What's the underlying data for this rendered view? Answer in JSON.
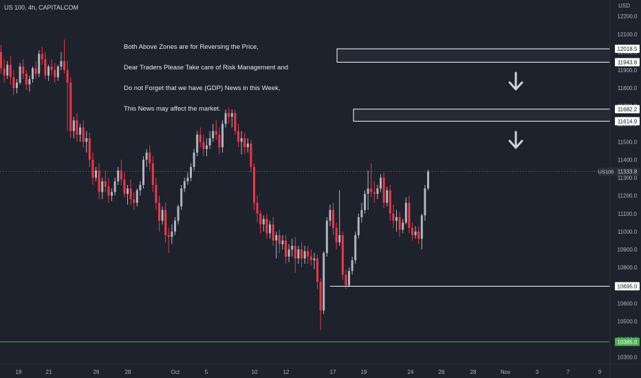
{
  "header": {
    "symbol_title": "US 100, 4h, CAPITALCOM",
    "currency": "USD"
  },
  "annotation": {
    "lines": [
      "Both Above Zones are for Reversing the Price,",
      "Dear Traders Please Take care of Risk Management and",
      "Do not Forget that we have (GDP) News in this Week,",
      "This News may affect the market."
    ]
  },
  "colors": {
    "background": "#1e222d",
    "up_candle": "#b2b5be",
    "down_candle": "#f23645",
    "green_line": "#4caf50",
    "zone_line": "#ffffff",
    "arrow": "#d1d4dc"
  },
  "chart_data": {
    "type": "candlestick",
    "timeframe": "4h",
    "y_axis": {
      "min": 10260,
      "max": 12260,
      "ticks": [
        12200,
        12100,
        12000,
        11900,
        11800,
        11700,
        11600,
        11500,
        11400,
        11300,
        11200,
        11100,
        11000,
        10900,
        10800,
        10700,
        10600,
        10500,
        10400,
        10300
      ],
      "tick_labels": [
        "12200.0",
        "12100.0",
        "12000.0",
        "11900.0",
        "11800.0",
        "11700.0",
        "11600.0",
        "11500.0",
        "11400.0",
        "11300.0",
        "11200.0",
        "11100.0",
        "11000.0",
        "10900.0",
        "10800.0",
        "10700.0",
        "10600.0",
        "10500.0",
        "10400.0",
        "10300.0"
      ]
    },
    "x_axis": {
      "tick_labels": [
        "19",
        "21",
        "26",
        "28",
        "Oct",
        "5",
        "10",
        "12",
        "17",
        "19",
        "24",
        "26",
        "28",
        "Nov",
        "3",
        "7",
        "9"
      ]
    },
    "zones": [
      {
        "top": 12018.5,
        "bottom": 11943.8,
        "top_label": "12018.5",
        "bottom_label": "11943.8"
      },
      {
        "top": 11682.2,
        "bottom": 11614.9,
        "top_label": "11682.2",
        "bottom_label": "11614.9"
      }
    ],
    "support_line": {
      "value": 10695.0,
      "label": "10695.0"
    },
    "green_line": {
      "value": 10385.0,
      "label": "10385.0"
    },
    "current_price": {
      "value": 11333.8,
      "label": "11333.8",
      "symbol": "US100"
    },
    "candles": [
      {
        "o": 12000,
        "h": 12040,
        "c": 11910,
        "l": 11880
      },
      {
        "o": 11910,
        "h": 11960,
        "c": 11870,
        "l": 11830
      },
      {
        "o": 11870,
        "h": 11950,
        "c": 11930,
        "l": 11850
      },
      {
        "o": 11930,
        "h": 11980,
        "c": 11860,
        "l": 11820
      },
      {
        "o": 11860,
        "h": 11900,
        "c": 11800,
        "l": 11760
      },
      {
        "o": 11800,
        "h": 11850,
        "c": 11830,
        "l": 11770
      },
      {
        "o": 11830,
        "h": 11940,
        "c": 11920,
        "l": 11820
      },
      {
        "o": 11920,
        "h": 11960,
        "c": 11880,
        "l": 11850
      },
      {
        "o": 11880,
        "h": 11900,
        "c": 11820,
        "l": 11790
      },
      {
        "o": 11820,
        "h": 11870,
        "c": 11850,
        "l": 11780
      },
      {
        "o": 11850,
        "h": 11920,
        "c": 11910,
        "l": 11830
      },
      {
        "o": 11910,
        "h": 11950,
        "c": 11880,
        "l": 11850
      },
      {
        "o": 11880,
        "h": 12010,
        "c": 11990,
        "l": 11860
      },
      {
        "o": 11990,
        "h": 12030,
        "c": 11960,
        "l": 11930
      },
      {
        "o": 11960,
        "h": 12000,
        "c": 11870,
        "l": 11850
      },
      {
        "o": 11870,
        "h": 11930,
        "c": 11920,
        "l": 11840
      },
      {
        "o": 11920,
        "h": 11960,
        "c": 11900,
        "l": 11870
      },
      {
        "o": 11900,
        "h": 11940,
        "c": 11860,
        "l": 11830
      },
      {
        "o": 11860,
        "h": 11930,
        "c": 11920,
        "l": 11840
      },
      {
        "o": 11920,
        "h": 12000,
        "c": 11950,
        "l": 11900
      },
      {
        "o": 11950,
        "h": 12070,
        "c": 11900,
        "l": 11880
      },
      {
        "o": 11900,
        "h": 11950,
        "c": 11830,
        "l": 11560
      },
      {
        "o": 11830,
        "h": 11860,
        "c": 11560,
        "l": 11520
      },
      {
        "o": 11560,
        "h": 11640,
        "c": 11620,
        "l": 11520
      },
      {
        "o": 11620,
        "h": 11660,
        "c": 11540,
        "l": 11500
      },
      {
        "o": 11540,
        "h": 11600,
        "c": 11580,
        "l": 11500
      },
      {
        "o": 11580,
        "h": 11620,
        "c": 11500,
        "l": 11470
      },
      {
        "o": 11500,
        "h": 11560,
        "c": 11520,
        "l": 11440
      },
      {
        "o": 11520,
        "h": 11550,
        "c": 11400,
        "l": 11360
      },
      {
        "o": 11400,
        "h": 11440,
        "c": 11300,
        "l": 11260
      },
      {
        "o": 11300,
        "h": 11360,
        "c": 11340,
        "l": 11280
      },
      {
        "o": 11340,
        "h": 11380,
        "c": 11220,
        "l": 11180
      },
      {
        "o": 11220,
        "h": 11300,
        "c": 11280,
        "l": 11180
      },
      {
        "o": 11280,
        "h": 11340,
        "c": 11250,
        "l": 11220
      },
      {
        "o": 11250,
        "h": 11300,
        "c": 11200,
        "l": 11160
      },
      {
        "o": 11200,
        "h": 11240,
        "c": 11220,
        "l": 11170
      },
      {
        "o": 11220,
        "h": 11300,
        "c": 11280,
        "l": 11200
      },
      {
        "o": 11280,
        "h": 11360,
        "c": 11340,
        "l": 11260
      },
      {
        "o": 11340,
        "h": 11400,
        "c": 11290,
        "l": 11260
      },
      {
        "o": 11290,
        "h": 11330,
        "c": 11210,
        "l": 11190
      },
      {
        "o": 11210,
        "h": 11260,
        "c": 11240,
        "l": 11150
      },
      {
        "o": 11240,
        "h": 11290,
        "c": 11180,
        "l": 11150
      },
      {
        "o": 11180,
        "h": 11220,
        "c": 11160,
        "l": 11120
      },
      {
        "o": 11160,
        "h": 11240,
        "c": 11230,
        "l": 11140
      },
      {
        "o": 11230,
        "h": 11280,
        "c": 11260,
        "l": 11200
      },
      {
        "o": 11260,
        "h": 11420,
        "c": 11400,
        "l": 11240
      },
      {
        "o": 11400,
        "h": 11460,
        "c": 11440,
        "l": 11360
      },
      {
        "o": 11440,
        "h": 11480,
        "c": 11380,
        "l": 11340
      },
      {
        "o": 11380,
        "h": 11420,
        "c": 11260,
        "l": 11220
      },
      {
        "o": 11260,
        "h": 11300,
        "c": 11160,
        "l": 11120
      },
      {
        "o": 11160,
        "h": 11200,
        "c": 11060,
        "l": 11000
      },
      {
        "o": 11060,
        "h": 11140,
        "c": 11120,
        "l": 11040
      },
      {
        "o": 11120,
        "h": 11160,
        "c": 10980,
        "l": 10940
      },
      {
        "o": 10980,
        "h": 11020,
        "c": 10970,
        "l": 10880
      },
      {
        "o": 10970,
        "h": 11040,
        "c": 11000,
        "l": 10930
      },
      {
        "o": 11000,
        "h": 11080,
        "c": 11060,
        "l": 10980
      },
      {
        "o": 11060,
        "h": 11150,
        "c": 11140,
        "l": 11040
      },
      {
        "o": 11140,
        "h": 11260,
        "c": 11240,
        "l": 11120
      },
      {
        "o": 11240,
        "h": 11300,
        "c": 11280,
        "l": 11220
      },
      {
        "o": 11280,
        "h": 11330,
        "c": 11300,
        "l": 11260
      },
      {
        "o": 11300,
        "h": 11380,
        "c": 11360,
        "l": 11280
      },
      {
        "o": 11360,
        "h": 11460,
        "c": 11440,
        "l": 11340
      },
      {
        "o": 11440,
        "h": 11560,
        "c": 11540,
        "l": 11420
      },
      {
        "o": 11540,
        "h": 11580,
        "c": 11500,
        "l": 11470
      },
      {
        "o": 11500,
        "h": 11540,
        "c": 11460,
        "l": 11420
      },
      {
        "o": 11460,
        "h": 11520,
        "c": 11480,
        "l": 11420
      },
      {
        "o": 11480,
        "h": 11560,
        "c": 11520,
        "l": 11460
      },
      {
        "o": 11520,
        "h": 11600,
        "c": 11560,
        "l": 11500
      },
      {
        "o": 11560,
        "h": 11620,
        "c": 11540,
        "l": 11510
      },
      {
        "o": 11540,
        "h": 11580,
        "c": 11470,
        "l": 11430
      },
      {
        "o": 11470,
        "h": 11620,
        "c": 11600,
        "l": 11440
      },
      {
        "o": 11600,
        "h": 11680,
        "c": 11660,
        "l": 11580
      },
      {
        "o": 11660,
        "h": 11690,
        "c": 11640,
        "l": 11600
      },
      {
        "o": 11640,
        "h": 11680,
        "c": 11660,
        "l": 11580
      },
      {
        "o": 11660,
        "h": 11680,
        "c": 11560,
        "l": 11540
      },
      {
        "o": 11560,
        "h": 11600,
        "c": 11500,
        "l": 11470
      },
      {
        "o": 11500,
        "h": 11560,
        "c": 11520,
        "l": 11430
      },
      {
        "o": 11520,
        "h": 11550,
        "c": 11470,
        "l": 11430
      },
      {
        "o": 11470,
        "h": 11520,
        "c": 11490,
        "l": 11440
      },
      {
        "o": 11490,
        "h": 11510,
        "c": 11360,
        "l": 11330
      },
      {
        "o": 11360,
        "h": 11380,
        "c": 11160,
        "l": 11120
      },
      {
        "o": 11160,
        "h": 11200,
        "c": 11100,
        "l": 11050
      },
      {
        "o": 11100,
        "h": 11120,
        "c": 11040,
        "l": 10990
      },
      {
        "o": 11040,
        "h": 11090,
        "c": 11070,
        "l": 11000
      },
      {
        "o": 11070,
        "h": 11100,
        "c": 10990,
        "l": 10960
      },
      {
        "o": 10990,
        "h": 11060,
        "c": 11040,
        "l": 10960
      },
      {
        "o": 11040,
        "h": 11080,
        "c": 10950,
        "l": 10920
      },
      {
        "o": 10950,
        "h": 11000,
        "c": 10980,
        "l": 10850
      },
      {
        "o": 10980,
        "h": 11010,
        "c": 10930,
        "l": 10880
      },
      {
        "o": 10930,
        "h": 10980,
        "c": 10950,
        "l": 10900
      },
      {
        "o": 10950,
        "h": 10980,
        "c": 10860,
        "l": 10820
      },
      {
        "o": 10860,
        "h": 10930,
        "c": 10900,
        "l": 10830
      },
      {
        "o": 10900,
        "h": 10960,
        "c": 10920,
        "l": 10860
      },
      {
        "o": 10920,
        "h": 10970,
        "c": 10850,
        "l": 10770
      },
      {
        "o": 10850,
        "h": 10920,
        "c": 10900,
        "l": 10820
      },
      {
        "o": 10900,
        "h": 10940,
        "c": 10850,
        "l": 10800
      },
      {
        "o": 10850,
        "h": 10920,
        "c": 10890,
        "l": 10820
      },
      {
        "o": 10890,
        "h": 10920,
        "c": 10860,
        "l": 10820
      },
      {
        "o": 10860,
        "h": 10900,
        "c": 10840,
        "l": 10810
      },
      {
        "o": 10840,
        "h": 10880,
        "c": 10850,
        "l": 10790
      },
      {
        "o": 10850,
        "h": 10870,
        "c": 10720,
        "l": 10680
      },
      {
        "o": 10720,
        "h": 10740,
        "c": 10560,
        "l": 10450
      },
      {
        "o": 10560,
        "h": 10890,
        "c": 10880,
        "l": 10540
      },
      {
        "o": 10880,
        "h": 11080,
        "c": 11060,
        "l": 10860
      },
      {
        "o": 11060,
        "h": 11150,
        "c": 11120,
        "l": 11030
      },
      {
        "o": 11120,
        "h": 11160,
        "c": 11020,
        "l": 10980
      },
      {
        "o": 11020,
        "h": 11050,
        "c": 10940,
        "l": 10900
      },
      {
        "o": 10940,
        "h": 11230,
        "c": 10980,
        "l": 10920
      },
      {
        "o": 10980,
        "h": 11000,
        "c": 10760,
        "l": 10730
      },
      {
        "o": 10760,
        "h": 10790,
        "c": 10700,
        "l": 10680
      },
      {
        "o": 10700,
        "h": 10800,
        "c": 10780,
        "l": 10690
      },
      {
        "o": 10780,
        "h": 10860,
        "c": 10840,
        "l": 10760
      },
      {
        "o": 10840,
        "h": 11000,
        "c": 10980,
        "l": 10820
      },
      {
        "o": 10980,
        "h": 11100,
        "c": 11080,
        "l": 10960
      },
      {
        "o": 11080,
        "h": 11160,
        "c": 11120,
        "l": 11050
      },
      {
        "o": 11120,
        "h": 11230,
        "c": 11210,
        "l": 11100
      },
      {
        "o": 11210,
        "h": 11340,
        "c": 11240,
        "l": 11120
      },
      {
        "o": 11240,
        "h": 11380,
        "c": 11220,
        "l": 11190
      },
      {
        "o": 11220,
        "h": 11280,
        "c": 11210,
        "l": 11160
      },
      {
        "o": 11210,
        "h": 11260,
        "c": 11240,
        "l": 11180
      },
      {
        "o": 11240,
        "h": 11320,
        "c": 11300,
        "l": 11220
      },
      {
        "o": 11300,
        "h": 11330,
        "c": 11160,
        "l": 11130
      },
      {
        "o": 11160,
        "h": 11250,
        "c": 11230,
        "l": 11140
      },
      {
        "o": 11230,
        "h": 11260,
        "c": 11100,
        "l": 11060
      },
      {
        "o": 11100,
        "h": 11150,
        "c": 11060,
        "l": 11020
      },
      {
        "o": 11060,
        "h": 11120,
        "c": 11080,
        "l": 11000
      },
      {
        "o": 11080,
        "h": 11110,
        "c": 11010,
        "l": 10970
      },
      {
        "o": 11010,
        "h": 11070,
        "c": 11050,
        "l": 10990
      },
      {
        "o": 11050,
        "h": 11190,
        "c": 11160,
        "l": 11040
      },
      {
        "o": 11160,
        "h": 11200,
        "c": 11020,
        "l": 10990
      },
      {
        "o": 11020,
        "h": 11050,
        "c": 10980,
        "l": 10950
      },
      {
        "o": 10980,
        "h": 11030,
        "c": 11000,
        "l": 10960
      },
      {
        "o": 11000,
        "h": 11030,
        "c": 10960,
        "l": 10930
      },
      {
        "o": 10960,
        "h": 11100,
        "c": 11090,
        "l": 10900
      },
      {
        "o": 11090,
        "h": 11260,
        "c": 11240,
        "l": 11060
      },
      {
        "o": 11240,
        "h": 11345,
        "c": 11334,
        "l": 11230
      }
    ]
  }
}
